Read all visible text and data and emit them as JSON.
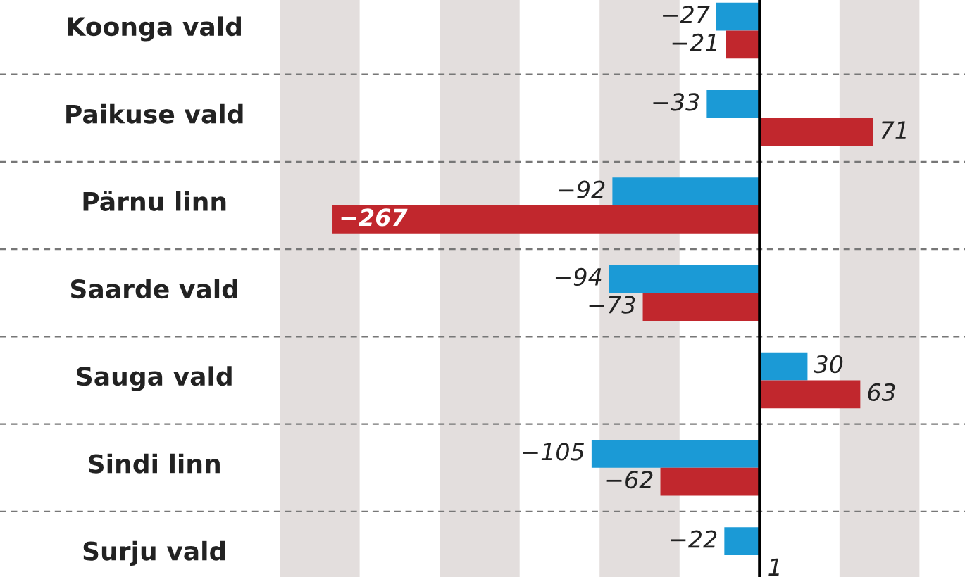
{
  "chart_data": {
    "type": "bar",
    "orientation": "horizontal",
    "categories": [
      "Koonga vald",
      "Paikuse vald",
      "Pärnu linn",
      "Saarde vald",
      "Sauga vald",
      "Sindi linn",
      "Surju vald"
    ],
    "series": [
      {
        "color": "#1b9ad6",
        "values": [
          -27,
          -33,
          -92,
          -94,
          30,
          -105,
          -22
        ],
        "value_labels": [
          "−27",
          "−33",
          "−92",
          "−94",
          "30",
          "−105",
          "−22"
        ]
      },
      {
        "color": "#c1272d",
        "values": [
          -21,
          71,
          -267,
          -73,
          63,
          -62,
          1
        ],
        "value_labels": [
          "−21",
          "71",
          "−267",
          "−73",
          "63",
          "−62",
          "1"
        ]
      }
    ],
    "bands": [
      {
        "axis": "x",
        "from": -300,
        "to": -250,
        "color": "#e3dedd"
      },
      {
        "axis": "x",
        "from": -200,
        "to": -150,
        "color": "#e3dedd"
      },
      {
        "axis": "x",
        "from": -100,
        "to": -50,
        "color": "#e3dedd"
      },
      {
        "axis": "x",
        "from": 50,
        "to": 100,
        "color": "#e3dedd"
      }
    ],
    "ref_lines": [
      {
        "axis": "x",
        "value": 0,
        "color": "#000000"
      }
    ],
    "grid": "y",
    "legend": false
  }
}
